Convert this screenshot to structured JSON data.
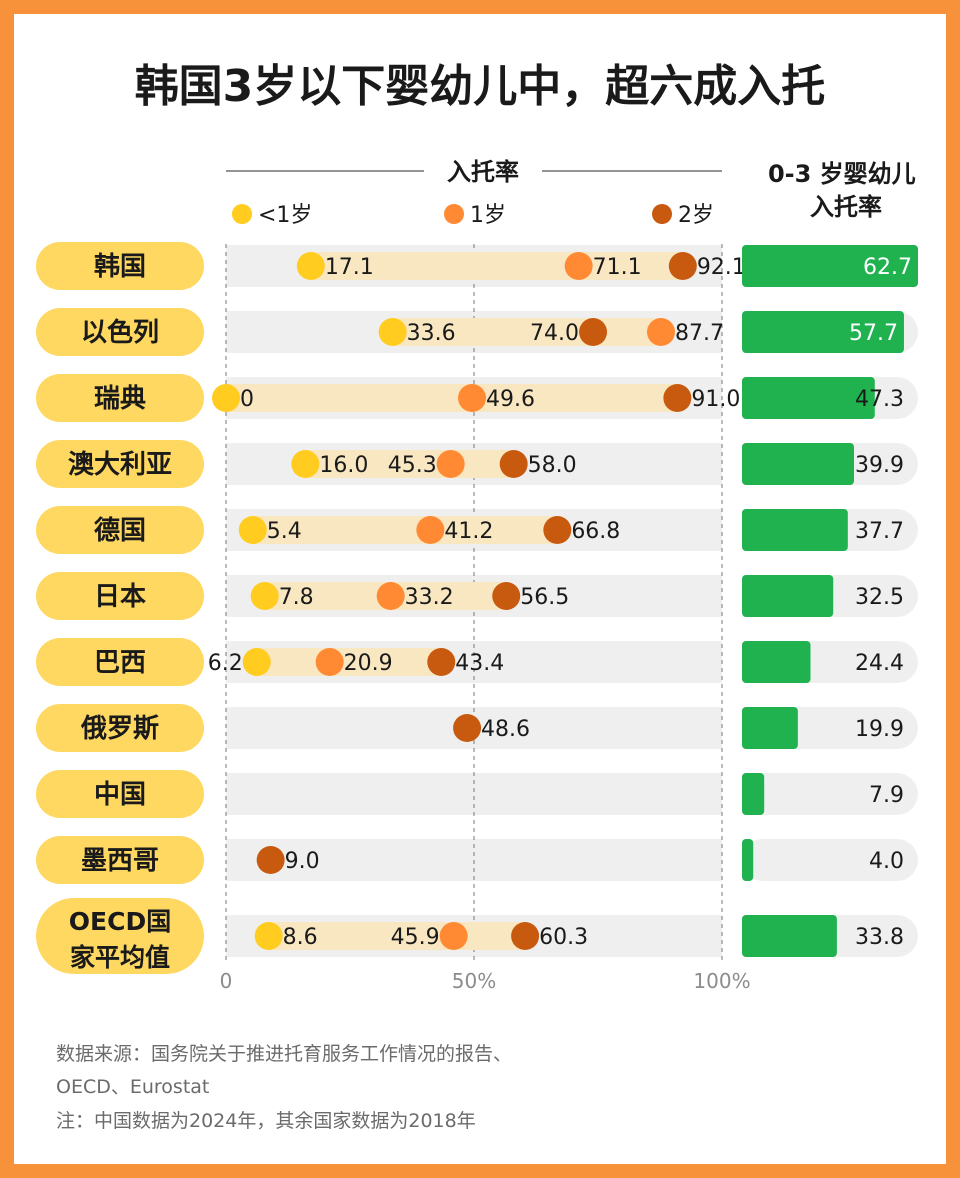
{
  "title": "韩国3岁以下婴幼儿中，超六成入托",
  "colors": {
    "lt1": "#ffcc1f",
    "age1": "#ff8a33",
    "age2": "#c85a10",
    "overall": "#1fb24f",
    "label_bg": "#ffd862",
    "range": "#f9e7c2",
    "track": "#efefef"
  },
  "chart_data": [
    {
      "type": "scatter",
      "header": "入托率",
      "legend": [
        {
          "key": "lt1",
          "label": "<1岁"
        },
        {
          "key": "age1",
          "label": "1岁"
        },
        {
          "key": "age2",
          "label": "2岁"
        }
      ],
      "x_ticks": [
        "0",
        "50%",
        "100%"
      ],
      "xlim": [
        0,
        100
      ],
      "categories": [
        "韩国",
        "以色列",
        "瑞典",
        "澳大利亚",
        "德国",
        "日本",
        "巴西",
        "俄罗斯",
        "中国",
        "墨西哥",
        "OECD国家平均值"
      ],
      "series": [
        {
          "name": "<1岁",
          "key": "lt1",
          "values": [
            17.1,
            33.6,
            0,
            16.0,
            5.4,
            7.8,
            6.2,
            null,
            null,
            null,
            8.6
          ]
        },
        {
          "name": "1岁",
          "key": "age1",
          "values": [
            71.1,
            87.7,
            49.6,
            45.3,
            41.2,
            33.2,
            20.9,
            null,
            null,
            null,
            45.9
          ]
        },
        {
          "name": "2岁",
          "key": "age2",
          "values": [
            92.1,
            74.0,
            91.0,
            58.0,
            66.8,
            56.5,
            43.4,
            48.6,
            null,
            9.0,
            60.3
          ]
        }
      ],
      "value_labels": [
        [
          "17.1",
          "71.1",
          "92.1"
        ],
        [
          "33.6",
          "87.7",
          "74.0"
        ],
        [
          "0",
          "49.6",
          "91.0"
        ],
        [
          "16.0",
          "45.3",
          "58.0"
        ],
        [
          "5.4",
          "41.2",
          "66.8"
        ],
        [
          "7.8",
          "33.2",
          "56.5"
        ],
        [
          "6.2",
          "20.9",
          "43.4"
        ],
        [
          null,
          null,
          "48.6"
        ],
        [
          null,
          null,
          null
        ],
        [
          null,
          null,
          "9.0"
        ],
        [
          "8.6",
          "45.9",
          "60.3"
        ]
      ]
    },
    {
      "type": "bar",
      "header": "0-3 岁婴幼儿入托率",
      "categories": [
        "韩国",
        "以色列",
        "瑞典",
        "澳大利亚",
        "德国",
        "日本",
        "巴西",
        "俄罗斯",
        "中国",
        "墨西哥",
        "OECD国家平均值"
      ],
      "values": [
        62.7,
        57.7,
        47.3,
        39.9,
        37.7,
        32.5,
        24.4,
        19.9,
        7.9,
        4.0,
        33.8
      ],
      "value_labels": [
        "62.7",
        "57.7",
        "47.3",
        "39.9",
        "37.7",
        "32.5",
        "24.4",
        "19.9",
        "7.9",
        "4.0",
        "33.8"
      ],
      "xlim": [
        0,
        62.7
      ]
    }
  ],
  "notes": [
    "数据来源：国务院关于推进托育服务工作情况的报告、",
    "OECD、Eurostat",
    "注：中国数据为2024年，其余国家数据为2018年"
  ]
}
